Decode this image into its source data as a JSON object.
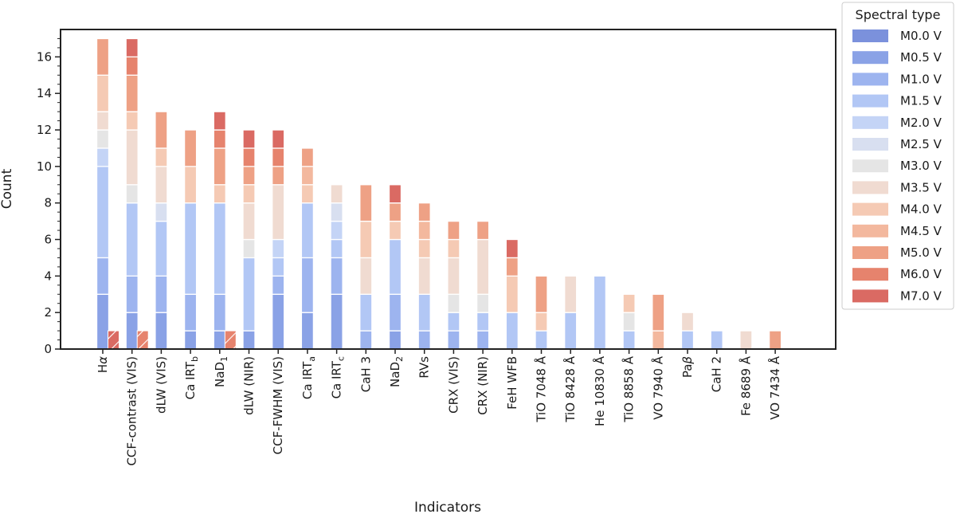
{
  "chart_data": {
    "type": "bar",
    "stacked": true,
    "xlabel": "Indicators",
    "ylabel": "Count",
    "ylim": [
      0,
      17.5
    ],
    "yticks": [
      0,
      2,
      4,
      6,
      8,
      10,
      12,
      14,
      16
    ],
    "grid": false,
    "legend": {
      "title": "Spectral type",
      "position": "outside-top-right"
    },
    "categories": [
      {
        "label": "Hα",
        "base": "H",
        "sym": "α"
      },
      {
        "label": "CCF-contrast (VIS)",
        "base": "CCF-contrast (VIS)"
      },
      {
        "label": "dLW (VIS)",
        "base": "dLW (VIS)"
      },
      {
        "label": "Ca IRT_b",
        "base": "Ca IRT",
        "sub": "b"
      },
      {
        "label": "NaD_1",
        "base": "NaD",
        "sub": "1"
      },
      {
        "label": "dLW (NIR)",
        "base": "dLW (NIR)"
      },
      {
        "label": "CCF-FWHM (VIS)",
        "base": "CCF-FWHM (VIS)"
      },
      {
        "label": "Ca IRT_a",
        "base": "Ca IRT",
        "sub": "a"
      },
      {
        "label": "Ca IRT_c",
        "base": "Ca IRT",
        "sub": "c"
      },
      {
        "label": "CaH 3",
        "base": "CaH 3"
      },
      {
        "label": "NaD_2",
        "base": "NaD",
        "sub": "2"
      },
      {
        "label": "RVs",
        "base": "RVs"
      },
      {
        "label": "CRX (VIS)",
        "base": "CRX (VIS)"
      },
      {
        "label": "CRX (NIR)",
        "base": "CRX (NIR)"
      },
      {
        "label": "FeH WFB",
        "base": "FeH WFB"
      },
      {
        "label": "TiO 7048 Å",
        "base": "TiO 7048 Å"
      },
      {
        "label": "TiO 8428 Å",
        "base": "TiO 8428 Å"
      },
      {
        "label": "He 10830 Å",
        "base": "He 10830 Å"
      },
      {
        "label": "TiO 8858 Å",
        "base": "TiO 8858 Å"
      },
      {
        "label": "VO 7940 Å",
        "base": "VO 7940 Å"
      },
      {
        "label": "Paβ",
        "base": "Pa",
        "sym": "β"
      },
      {
        "label": "CaH 2",
        "base": "CaH 2"
      },
      {
        "label": "Fe 8689 Å",
        "base": "Fe 8689 Å"
      },
      {
        "label": "VO 7434 Å",
        "base": "VO 7434 Å"
      }
    ],
    "series": [
      {
        "name": "M0.0 V",
        "color": "#7b91dc",
        "values": [
          0,
          0,
          0,
          0,
          0,
          0,
          0,
          0,
          0,
          0,
          0,
          0,
          0,
          0,
          0,
          0,
          0,
          0,
          0,
          0,
          0,
          0,
          0,
          0
        ]
      },
      {
        "name": "M0.5 V",
        "color": "#8aa2e6",
        "values": [
          3,
          2,
          2,
          1,
          1,
          1,
          3,
          2,
          3,
          0,
          1,
          0,
          0,
          0,
          0,
          0,
          0,
          0,
          0,
          0,
          0,
          0,
          0,
          0
        ]
      },
      {
        "name": "M1.0 V",
        "color": "#9db4ef",
        "values": [
          2,
          2,
          2,
          2,
          2,
          0,
          1,
          3,
          2,
          1,
          2,
          1,
          1,
          1,
          0,
          0,
          0,
          0,
          0,
          0,
          0,
          0,
          0,
          0
        ]
      },
      {
        "name": "M1.5 V",
        "color": "#b2c7f5",
        "values": [
          5,
          4,
          3,
          5,
          5,
          4,
          1,
          3,
          1,
          2,
          3,
          2,
          1,
          1,
          2,
          1,
          2,
          4,
          1,
          0,
          1,
          1,
          0,
          0
        ]
      },
      {
        "name": "M2.0 V",
        "color": "#c4d4f6",
        "values": [
          1,
          0,
          0,
          0,
          0,
          0,
          1,
          0,
          1,
          0,
          0,
          0,
          0,
          0,
          0,
          0,
          0,
          0,
          0,
          0,
          0,
          0,
          0,
          0
        ]
      },
      {
        "name": "M2.5 V",
        "color": "#d8dff0",
        "values": [
          0,
          0,
          1,
          0,
          0,
          0,
          0,
          0,
          1,
          0,
          0,
          0,
          0,
          0,
          0,
          0,
          0,
          0,
          0,
          0,
          0,
          0,
          0,
          0
        ]
      },
      {
        "name": "M3.0 V",
        "color": "#e5e5e5",
        "values": [
          1,
          1,
          0,
          0,
          0,
          1,
          0,
          0,
          0,
          0,
          0,
          0,
          1,
          1,
          0,
          0,
          0,
          0,
          1,
          0,
          0,
          0,
          0,
          0
        ]
      },
      {
        "name": "M3.5 V",
        "color": "#f0dbd1",
        "values": [
          1,
          3,
          2,
          0,
          0,
          2,
          3,
          0,
          1,
          2,
          0,
          2,
          2,
          3,
          0,
          0,
          2,
          0,
          0,
          0,
          1,
          0,
          1,
          0
        ]
      },
      {
        "name": "M4.0 V",
        "color": "#f5cab4",
        "values": [
          2,
          1,
          1,
          2,
          1,
          1,
          0,
          1,
          0,
          2,
          1,
          1,
          1,
          0,
          2,
          1,
          0,
          0,
          1,
          0,
          0,
          0,
          0,
          0
        ]
      },
      {
        "name": "M4.5 V",
        "color": "#f3b89e",
        "values": [
          0,
          0,
          0,
          0,
          0,
          0,
          0,
          1,
          0,
          0,
          0,
          1,
          0,
          0,
          0,
          0,
          0,
          0,
          0,
          1,
          0,
          0,
          0,
          0
        ]
      },
      {
        "name": "M5.0 V",
        "color": "#eea185",
        "values": [
          2,
          2,
          2,
          2,
          2,
          1,
          1,
          1,
          0,
          2,
          1,
          1,
          1,
          1,
          1,
          2,
          0,
          0,
          0,
          2,
          0,
          0,
          0,
          1
        ]
      },
      {
        "name": "M6.0 V",
        "color": "#e6836d",
        "values": [
          0,
          1,
          0,
          0,
          1,
          1,
          1,
          0,
          0,
          0,
          0,
          0,
          0,
          0,
          0,
          0,
          0,
          0,
          0,
          0,
          0,
          0,
          0,
          0
        ]
      },
      {
        "name": "M7.0 V",
        "color": "#da6a63",
        "values": [
          0,
          1,
          0,
          0,
          1,
          1,
          1,
          0,
          0,
          0,
          1,
          0,
          0,
          0,
          1,
          0,
          0,
          0,
          0,
          0,
          0,
          0,
          0,
          0
        ]
      }
    ],
    "hatched_bars": [
      {
        "category": "Hα",
        "value": 1,
        "color": "#da6a63"
      },
      {
        "category": "CCF-contrast (VIS)",
        "value": 1,
        "color": "#e6836d"
      },
      {
        "category": "NaD_1",
        "value": 1,
        "color": "#e6836d"
      }
    ]
  }
}
